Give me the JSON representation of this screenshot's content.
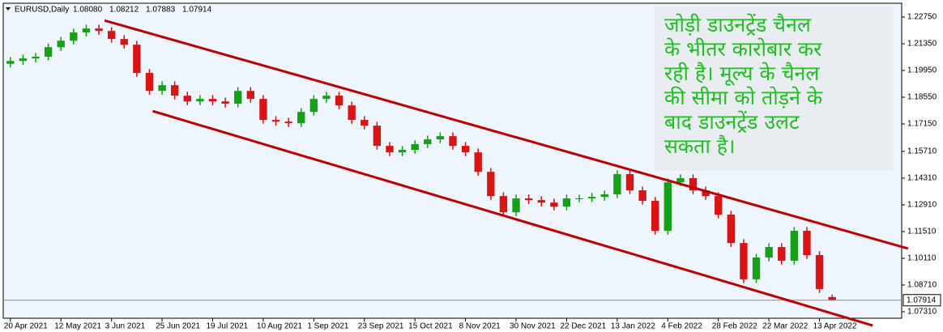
{
  "chart_data": {
    "type": "candlestick",
    "header": {
      "symbol": "EURUSD,Daily",
      "ohlc_labels": [
        "1.08080",
        "1.08212",
        "1.07883",
        "1.07914"
      ]
    },
    "annotation": [
      "जोड़ी डाउनट्रेंड चैनल",
      "के भीतर कारोबार कर",
      "रही है। मूल्य के चैनल",
      "की सीमा को तोड़ने के",
      "बाद डाउनट्रेंड उलट",
      "सकता है।"
    ],
    "categories": [
      "20 Apr 2021",
      null,
      null,
      null,
      "12 May 2021",
      null,
      null,
      null,
      "3 Jun 2021",
      null,
      null,
      null,
      "25 Jun 2021",
      null,
      null,
      null,
      "19 Jul 2021",
      null,
      null,
      null,
      "10 Aug 2021",
      null,
      null,
      null,
      "1 Sep 2021",
      null,
      null,
      null,
      "23 Sep 2021",
      null,
      null,
      null,
      "15 Oct 2021",
      null,
      null,
      null,
      "8 Nov 2021",
      null,
      null,
      null,
      "30 Nov 2021",
      null,
      null,
      null,
      "22 Dec 2021",
      null,
      null,
      null,
      "13 Jan 2022",
      null,
      null,
      null,
      "4 Feb 2022",
      null,
      null,
      null,
      "28 Feb 2022",
      null,
      null,
      null,
      "22 Mar 2022",
      null,
      null,
      null,
      "13 Apr 2022",
      null
    ],
    "open": [
      1.203,
      1.2045,
      1.2058,
      1.2067,
      1.2117,
      1.2151,
      1.2194,
      1.2215,
      1.2202,
      1.216,
      1.213,
      1.1982,
      1.1888,
      1.1918,
      1.1863,
      1.1833,
      1.1846,
      1.1833,
      1.1821,
      1.1888,
      1.1846,
      1.1736,
      1.1727,
      1.1719,
      1.1778,
      1.1846,
      1.1863,
      1.1812,
      1.1736,
      1.1706,
      1.16,
      1.1566,
      1.1579,
      1.1609,
      1.1634,
      1.1651,
      1.16,
      1.1566,
      1.1464,
      1.1337,
      1.1252,
      1.1325,
      1.1316,
      1.1303,
      1.1282,
      1.1325,
      1.1325,
      1.1333,
      1.1346,
      1.1452,
      1.1367,
      1.1312,
      1.1155,
      1.1409,
      1.1431,
      1.1367,
      1.1337,
      1.124,
      1.1091,
      1.0901,
      1.1015,
      1.107,
      1.0998,
      1.1155,
      1.1028,
      1.0808
    ],
    "high": [
      1.2065,
      1.2078,
      1.2087,
      1.2137,
      1.2171,
      1.2214,
      1.2235,
      1.2235,
      1.2222,
      1.218,
      1.215,
      1.2002,
      1.1938,
      1.1938,
      1.1883,
      1.1866,
      1.1866,
      1.1853,
      1.1908,
      1.1908,
      1.1866,
      1.1756,
      1.1747,
      1.1798,
      1.1866,
      1.1883,
      1.1883,
      1.1832,
      1.1756,
      1.1726,
      1.162,
      1.1599,
      1.1629,
      1.1654,
      1.1671,
      1.1671,
      1.162,
      1.1586,
      1.1484,
      1.1357,
      1.1345,
      1.1345,
      1.1336,
      1.1323,
      1.1345,
      1.1345,
      1.1353,
      1.1366,
      1.1472,
      1.1472,
      1.1387,
      1.1332,
      1.1429,
      1.1451,
      1.1451,
      1.1387,
      1.1357,
      1.126,
      1.1111,
      1.1035,
      1.109,
      1.109,
      1.1175,
      1.1175,
      1.1048,
      1.08212
    ],
    "low": [
      1.201,
      1.2025,
      1.2038,
      1.2047,
      1.2097,
      1.2131,
      1.2174,
      1.2182,
      1.214,
      1.211,
      1.1962,
      1.1868,
      1.1868,
      1.1843,
      1.1813,
      1.1813,
      1.1813,
      1.1801,
      1.1801,
      1.1826,
      1.1716,
      1.1707,
      1.1699,
      1.1699,
      1.1758,
      1.1826,
      1.1792,
      1.1716,
      1.1686,
      1.158,
      1.1546,
      1.1546,
      1.1559,
      1.1589,
      1.1614,
      1.158,
      1.1546,
      1.1444,
      1.1317,
      1.1232,
      1.1232,
      1.1296,
      1.1283,
      1.1262,
      1.1262,
      1.1305,
      1.1305,
      1.1313,
      1.1326,
      1.1347,
      1.1292,
      1.1135,
      1.1135,
      1.1389,
      1.1347,
      1.1317,
      1.122,
      1.1071,
      1.0881,
      1.0881,
      1.0995,
      1.0978,
      1.0978,
      1.1008,
      1.083,
      1.07883
    ],
    "close": [
      1.2045,
      1.2058,
      1.2067,
      1.2117,
      1.2151,
      1.2194,
      1.2215,
      1.2202,
      1.216,
      1.213,
      1.1982,
      1.1888,
      1.1918,
      1.1863,
      1.1833,
      1.1846,
      1.1833,
      1.1821,
      1.1888,
      1.1846,
      1.1736,
      1.1727,
      1.1719,
      1.1778,
      1.1846,
      1.1863,
      1.1812,
      1.1736,
      1.1706,
      1.16,
      1.1566,
      1.1579,
      1.1609,
      1.1634,
      1.1651,
      1.16,
      1.1566,
      1.1464,
      1.1337,
      1.1252,
      1.1325,
      1.1316,
      1.1303,
      1.1282,
      1.1325,
      1.1325,
      1.1333,
      1.1346,
      1.1452,
      1.1367,
      1.1312,
      1.1155,
      1.1409,
      1.1431,
      1.1367,
      1.1337,
      1.124,
      1.1091,
      1.0901,
      1.1015,
      1.107,
      1.0998,
      1.1155,
      1.1028,
      1.085,
      1.07914
    ],
    "up_color": "#16a016",
    "down_color": "#d81414",
    "xlim": [
      -0.5,
      70.5
    ],
    "ylim": [
      1.0697,
      1.2343
    ],
    "yticks": [
      {
        "value": 1.2275,
        "label": "1.22750"
      },
      {
        "value": 1.2135,
        "label": "1.21350"
      },
      {
        "value": 1.1995,
        "label": "1.19950"
      },
      {
        "value": 1.1855,
        "label": "1.18550"
      },
      {
        "value": 1.1715,
        "label": "1.17150"
      },
      {
        "value": 1.1571,
        "label": "1.15710"
      },
      {
        "value": 1.1431,
        "label": "1.14310"
      },
      {
        "value": 1.1291,
        "label": "1.12910"
      },
      {
        "value": 1.1151,
        "label": "1.11510"
      },
      {
        "value": 1.1011,
        "label": "1.10110"
      },
      {
        "value": 1.0871,
        "label": "1.08710"
      },
      {
        "value": 1.0731,
        "label": "1.07310"
      }
    ],
    "current_price": {
      "value": 1.07914,
      "label": "1.07914"
    },
    "trendlines": [
      {
        "x": [
          7.45,
          71.0
        ],
        "y": [
          1.2257,
          1.1062
        ],
        "color": "#c00000"
      },
      {
        "x": [
          11.26,
          68.2
        ],
        "y": [
          1.1782,
          1.0659
        ],
        "color": "#c00000"
      }
    ]
  }
}
